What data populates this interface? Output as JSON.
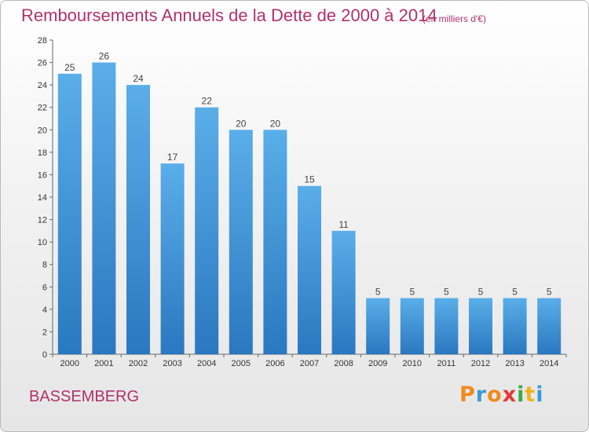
{
  "title": "Remboursements Annuels de la Dette de 2000 à 2014",
  "subtitle": "(en milliers d'€)",
  "city": "BASSEMBERG",
  "logo": {
    "letters": [
      "P",
      "r",
      "o",
      "x",
      "i",
      "t",
      "i"
    ],
    "colors": [
      "#f08a1c",
      "#3a9ad9",
      "#f08a1c",
      "#e03a3a",
      "#3aa84a",
      "#f0b41c",
      "#3a9ad9"
    ]
  },
  "colors": {
    "bar_top": "#5aaee8",
    "bar_bottom": "#2a78c0",
    "title": "#b0316e"
  },
  "chart_data": {
    "type": "bar",
    "title": "Remboursements Annuels de la Dette de 2000 à 2014",
    "subtitle": "(en milliers d'€)",
    "categories": [
      "2000",
      "2001",
      "2002",
      "2003",
      "2004",
      "2005",
      "2006",
      "2007",
      "2008",
      "2009",
      "2010",
      "2011",
      "2012",
      "2013",
      "2014"
    ],
    "values": [
      25,
      26,
      24,
      17,
      22,
      20,
      20,
      15,
      11,
      5,
      5,
      5,
      5,
      5,
      5
    ],
    "ylim": [
      0,
      28
    ],
    "yticks": [
      0,
      2,
      4,
      6,
      8,
      10,
      12,
      14,
      16,
      18,
      20,
      22,
      24,
      26,
      28
    ],
    "xlabel": "",
    "ylabel": "",
    "grid": false,
    "legend": "none"
  }
}
